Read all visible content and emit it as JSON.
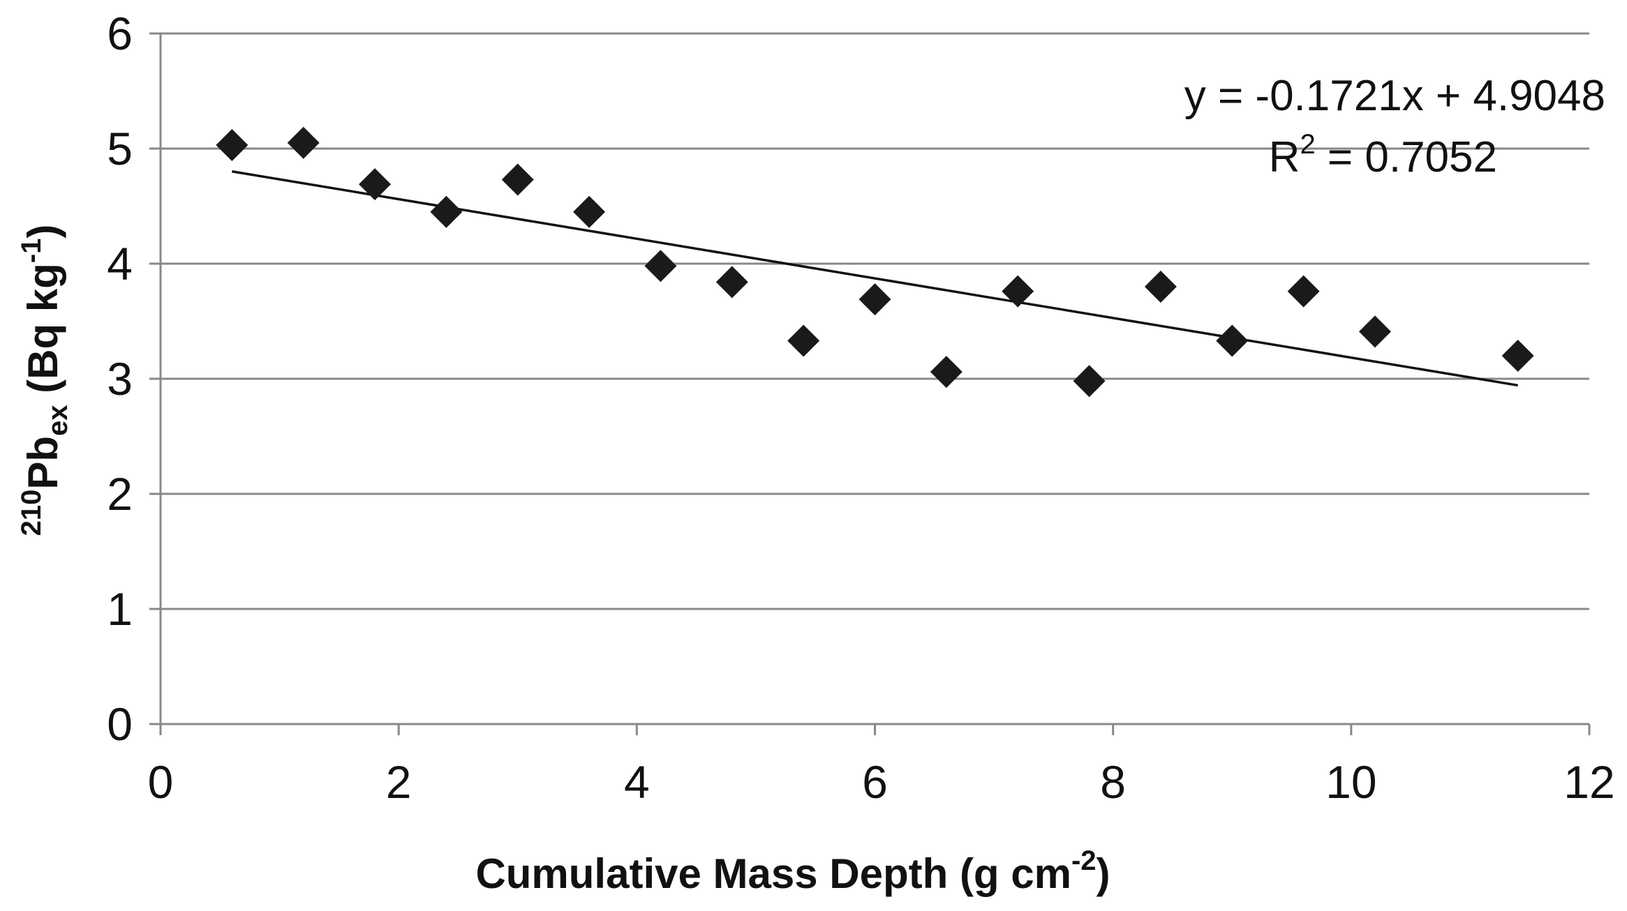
{
  "chart_data": {
    "type": "scatter",
    "title": "",
    "xlabel": {
      "text": "Cumulative Mass Depth (g cm",
      "sup": "-2",
      "close": ")"
    },
    "ylabel": {
      "sup_prefix": "210",
      "main": "Pb",
      "sub": "ex",
      "unit": " (Bq kg",
      "unit_sup": "-1",
      "close": ")"
    },
    "xlim": [
      0,
      12
    ],
    "ylim": [
      0,
      6
    ],
    "x_ticks": [
      0,
      2,
      4,
      6,
      8,
      10,
      12
    ],
    "y_ticks": [
      0,
      1,
      2,
      3,
      4,
      5,
      6
    ],
    "grid": "horizontal",
    "marker": "diamond",
    "marker_color": "#1a1a1a",
    "line_color": "#111111",
    "grid_color": "#888888",
    "points": [
      {
        "x": 0.6,
        "y": 5.03
      },
      {
        "x": 1.2,
        "y": 5.05
      },
      {
        "x": 1.8,
        "y": 4.69
      },
      {
        "x": 2.4,
        "y": 4.45
      },
      {
        "x": 3.0,
        "y": 4.73
      },
      {
        "x": 3.6,
        "y": 4.45
      },
      {
        "x": 4.2,
        "y": 3.98
      },
      {
        "x": 4.8,
        "y": 3.84
      },
      {
        "x": 5.4,
        "y": 3.33
      },
      {
        "x": 6.0,
        "y": 3.69
      },
      {
        "x": 6.6,
        "y": 3.06
      },
      {
        "x": 7.2,
        "y": 3.76
      },
      {
        "x": 7.8,
        "y": 2.98
      },
      {
        "x": 8.4,
        "y": 3.8
      },
      {
        "x": 9.0,
        "y": 3.33
      },
      {
        "x": 9.6,
        "y": 3.76
      },
      {
        "x": 10.2,
        "y": 3.41
      },
      {
        "x": 11.4,
        "y": 3.2
      }
    ],
    "trendline": {
      "slope": -0.1721,
      "intercept": 4.9048,
      "x_start": 0.6,
      "x_end": 11.4
    },
    "annotation": {
      "equation": "y = -0.1721x + 4.9048",
      "r2_label": "R",
      "r2_sup": "2",
      "r2_value": " = 0.7052"
    }
  }
}
